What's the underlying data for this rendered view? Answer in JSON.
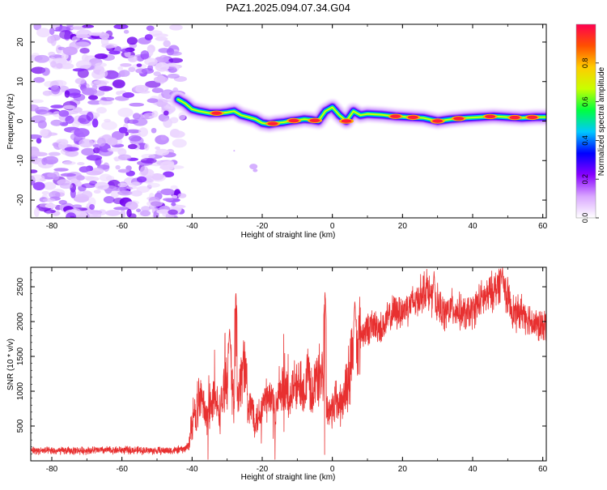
{
  "title": "PAZ1.2025.094.07.34.G04",
  "chart_data": [
    {
      "type": "heatmap",
      "xlabel": "Height of straight line (km)",
      "ylabel": "Frequency (Hz)",
      "xlim": [
        -86,
        61
      ],
      "ylim": [
        -24.5,
        24.5
      ],
      "x_ticks": [
        "-80",
        "-60",
        "-40",
        "-20",
        "0",
        "20",
        "40",
        "60"
      ],
      "y_ticks": [
        "-20",
        "-10",
        "0",
        "10",
        "20"
      ],
      "noise_region_x": [
        -86,
        -44
      ],
      "ridge": {
        "x": [
          -44,
          -42,
          -40,
          -38,
          -35,
          -32,
          -30,
          -28,
          -26,
          -24,
          -22,
          -20,
          -18,
          -16,
          -14,
          -12,
          -10,
          -8,
          -6,
          -4,
          -2,
          0,
          2,
          4,
          6,
          8,
          10,
          14,
          18,
          22,
          26,
          30,
          34,
          38,
          42,
          46,
          50,
          54,
          58,
          61
        ],
        "y": [
          5.5,
          4.5,
          3.0,
          2.5,
          2.0,
          2.0,
          2.2,
          2.5,
          1.5,
          1.0,
          0.5,
          -0.5,
          -0.8,
          -0.5,
          -0.3,
          0.0,
          0.2,
          0.5,
          0.3,
          0.0,
          2.5,
          3.5,
          1.5,
          0.0,
          2.5,
          1.5,
          1.8,
          1.6,
          1.2,
          1.0,
          0.8,
          0.0,
          0.5,
          0.8,
          1.0,
          1.2,
          1.0,
          0.8,
          1.0,
          1.0
        ],
        "peaks_x": [
          -33,
          -17,
          -11,
          -5,
          4,
          18,
          23,
          30,
          36,
          45,
          52,
          57
        ]
      },
      "colorbar": {
        "label": "Normalized spectral amplitude",
        "ticks": [
          "0.0",
          "0.2",
          "0.4",
          "0.6",
          "0.8"
        ],
        "range": [
          0,
          1
        ],
        "colors": [
          "#ffffff",
          "#d9a6ff",
          "#8800ff",
          "#0000ff",
          "#00c8ff",
          "#00ff40",
          "#c8ff00",
          "#ffcc00",
          "#ff5000",
          "#ff0050"
        ]
      }
    },
    {
      "type": "line",
      "xlabel": "Height of straight line (km)",
      "ylabel": "SNR (10 * v/v)",
      "xlim": [
        -86,
        61
      ],
      "ylim": [
        0,
        2780
      ],
      "x_ticks": [
        "-80",
        "-60",
        "-40",
        "-20",
        "0",
        "20",
        "40",
        "60"
      ],
      "y_ticks": [
        "500",
        "1000",
        "1500",
        "2000",
        "2500"
      ],
      "color": "#e83030",
      "series": [
        {
          "x": [
            -86,
            -80,
            -70,
            -60,
            -50,
            -45,
            -42,
            -41,
            -40,
            -39,
            -38,
            -37,
            -36,
            -35,
            -34,
            -33,
            -32,
            -31,
            -30,
            -29,
            -28,
            -27,
            -26,
            -25,
            -24,
            -23,
            -22,
            -21,
            -20,
            -19,
            -18,
            -17,
            -16,
            -15,
            -14,
            -13,
            -12,
            -11,
            -10,
            -9,
            -8,
            -7,
            -6,
            -5,
            -4,
            -3,
            -2,
            -1,
            0,
            1,
            2,
            3,
            4,
            5,
            6,
            7,
            8,
            10,
            12,
            14,
            16,
            18,
            20,
            22,
            24,
            26,
            27,
            28,
            30,
            32,
            34,
            36,
            38,
            40,
            42,
            44,
            46,
            47,
            48,
            49,
            50,
            52,
            54,
            56,
            58,
            60,
            61
          ],
          "y": [
            150,
            140,
            150,
            155,
            145,
            150,
            170,
            230,
            520,
            700,
            900,
            850,
            600,
            750,
            900,
            800,
            700,
            1000,
            1200,
            1300,
            800,
            900,
            1200,
            1500,
            700,
            800,
            600,
            650,
            800,
            850,
            900,
            850,
            750,
            900,
            1000,
            950,
            900,
            1100,
            1000,
            1200,
            1000,
            1300,
            1000,
            1100,
            1200,
            1300,
            800,
            700,
            750,
            900,
            800,
            850,
            1100,
            1300,
            1650,
            1700,
            1800,
            1900,
            1950,
            1900,
            2050,
            2150,
            2150,
            2250,
            2300,
            2450,
            2500,
            2350,
            2250,
            2100,
            2200,
            2150,
            2100,
            2150,
            2300,
            2350,
            2450,
            2500,
            2600,
            2450,
            2350,
            2100,
            2150,
            2050,
            1950,
            1900,
            2000
          ],
          "spikes": [
            {
              "x": -27.5,
              "y": 2420
            },
            {
              "x": -29.3,
              "y": 1900
            },
            {
              "x": -2.1,
              "y": 2420
            },
            {
              "x": 6.4,
              "y": 2300
            },
            {
              "x": 29.0,
              "y": 2720
            },
            {
              "x": 48.5,
              "y": 2780
            }
          ]
        }
      ]
    }
  ]
}
